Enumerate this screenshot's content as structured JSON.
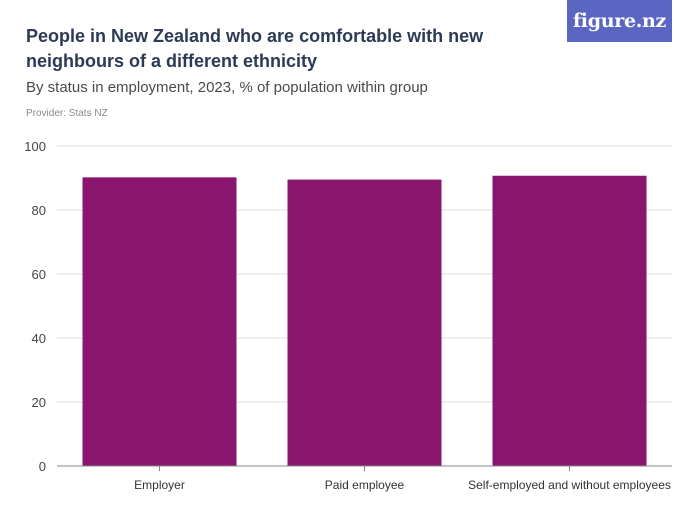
{
  "header": {
    "title": "People in New Zealand who are comfortable with new neighbours of a different ethnicity",
    "subtitle": "By status in employment, 2023, % of population within group",
    "provider": "Provider: Stats NZ",
    "logo_text": "figure.nz"
  },
  "colors": {
    "bar": "#89156f",
    "logo_bg": "#5b66c3",
    "grid": "#dddddd",
    "axis": "#888888"
  },
  "chart_data": {
    "type": "bar",
    "categories": [
      "Employer",
      "Paid employee",
      "Self-employed and without employees"
    ],
    "values": [
      90.2,
      89.5,
      90.7
    ],
    "title": "People in New Zealand who are comfortable with new neighbours of a different ethnicity",
    "subtitle": "By status in employment, 2023, % of population within group",
    "xlabel": "",
    "ylabel": "",
    "ylim": [
      0,
      100
    ],
    "yticks": [
      0,
      20,
      40,
      60,
      80,
      100
    ],
    "grid": true,
    "legend": "none"
  }
}
